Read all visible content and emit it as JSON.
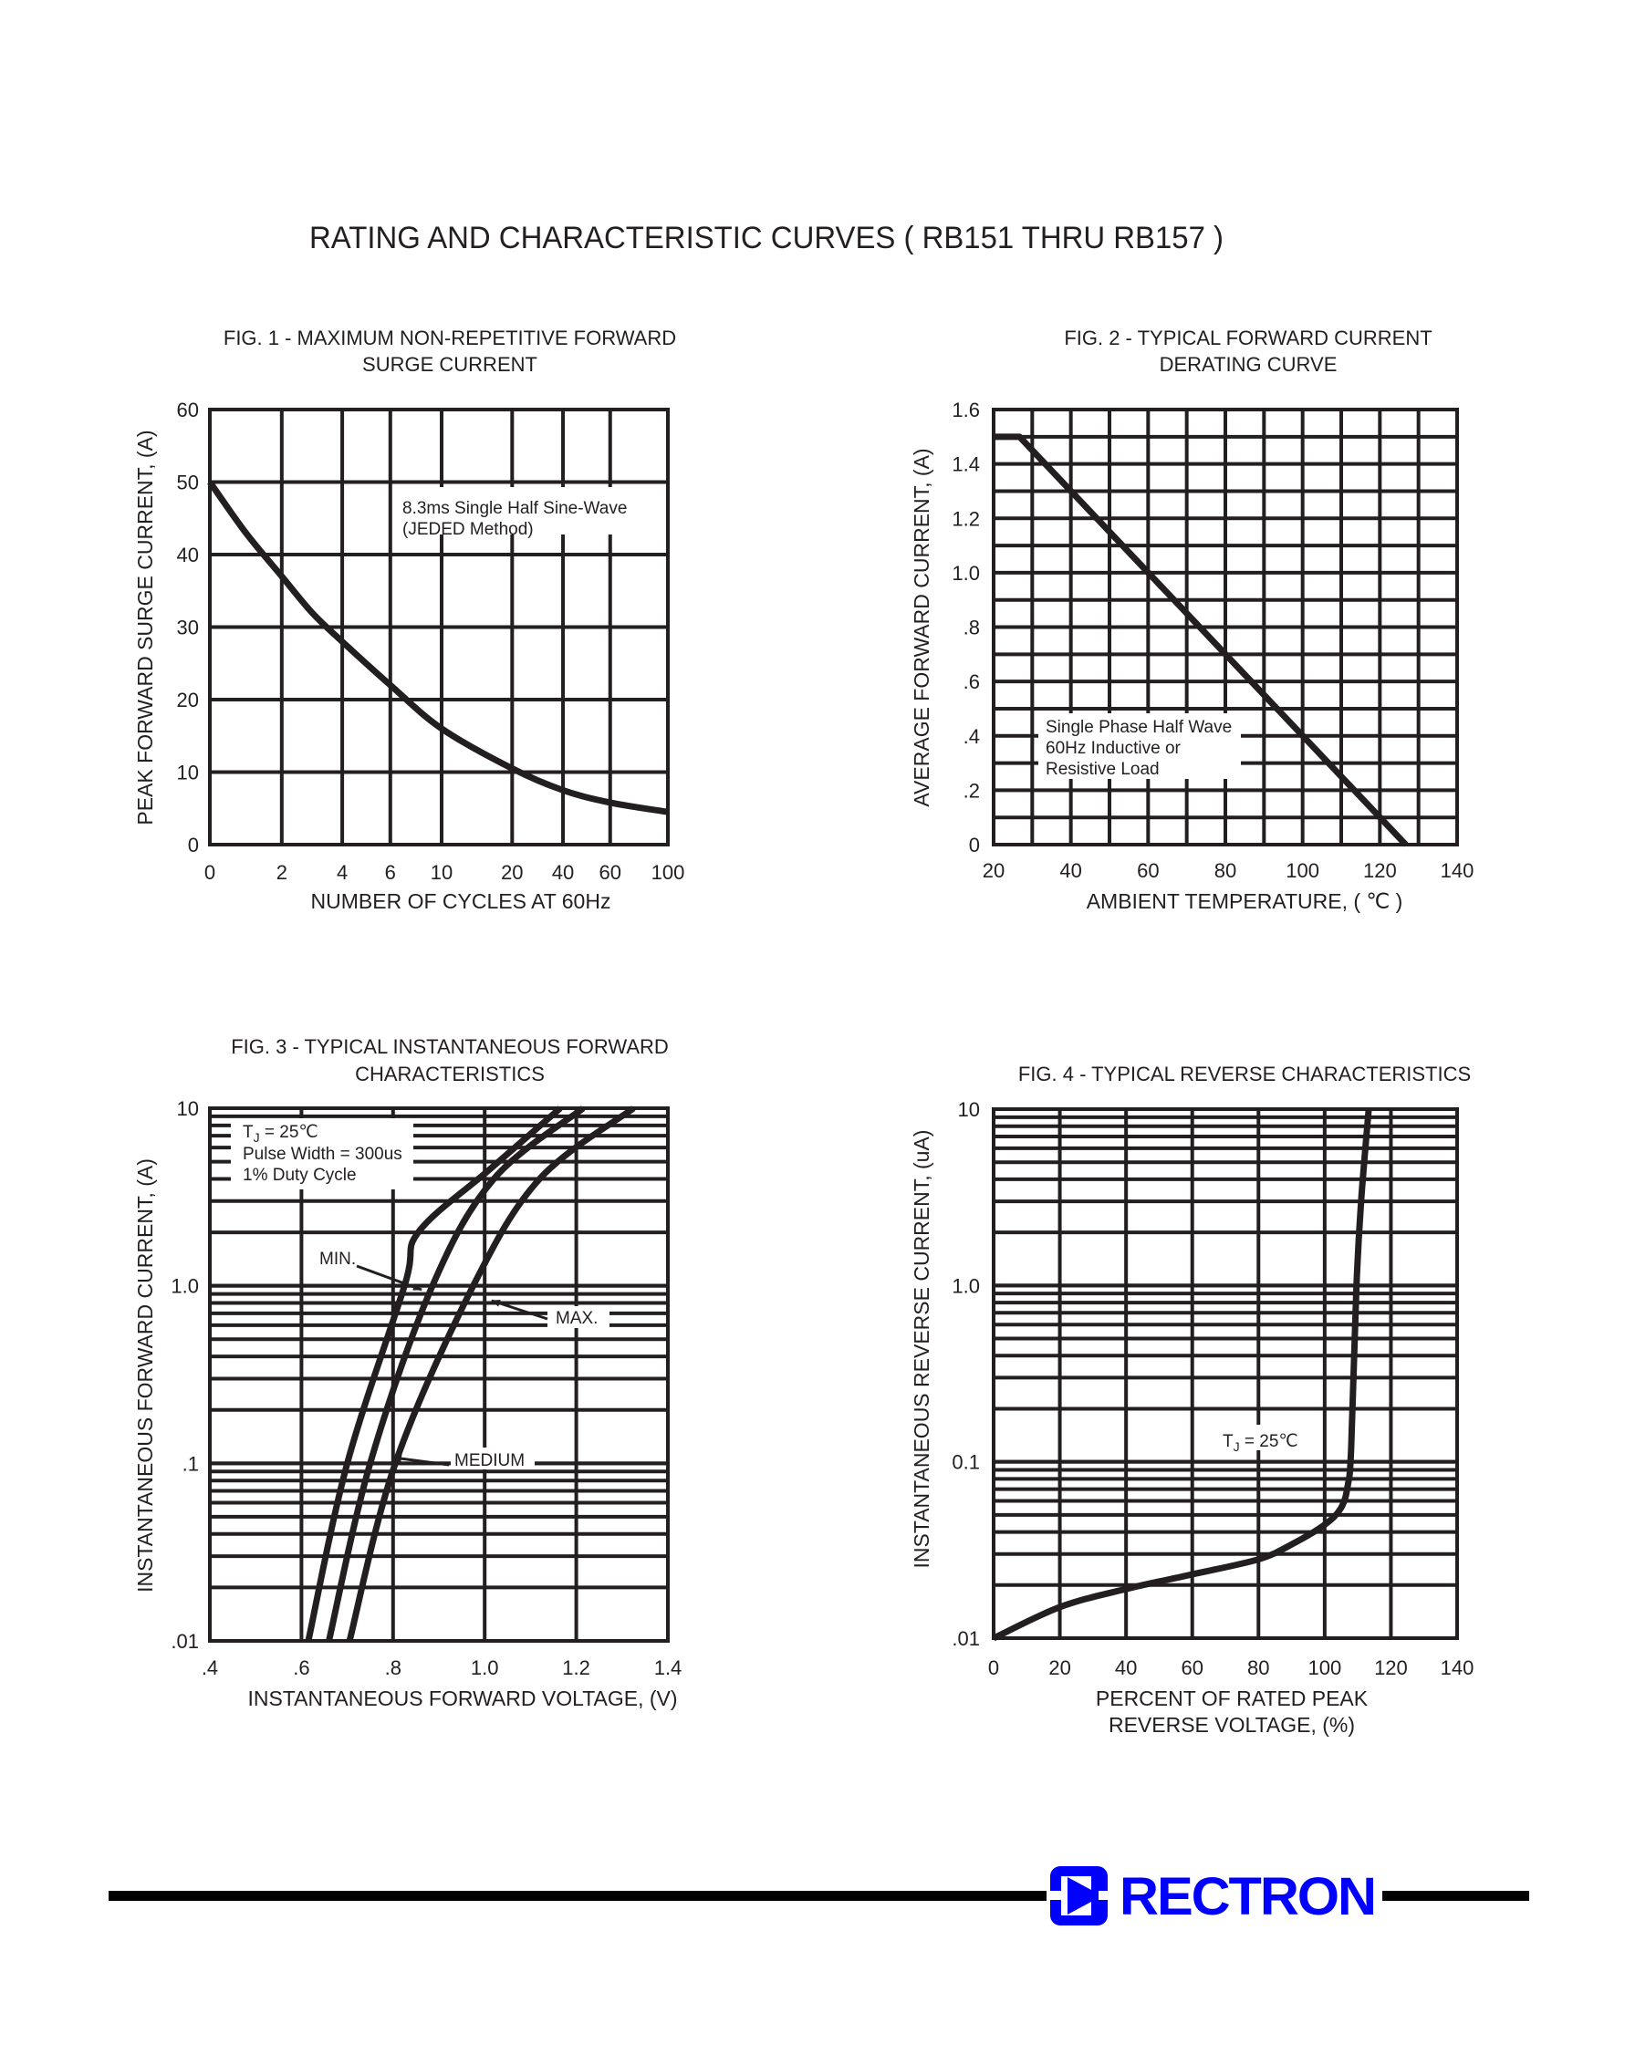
{
  "page": {
    "title": "RATING AND CHARACTERISTIC CURVES ( RB151 THRU RB157 )",
    "footer": {
      "brand": "RECTRON",
      "brand_color": "#0000ff",
      "logo_icon": "diode-logo-icon"
    }
  },
  "colors": {
    "ink": "#231f20",
    "background": "#ffffff"
  },
  "chart_data": [
    {
      "type": "line",
      "title_lines": [
        "FIG. 1 - MAXIMUM NON-REPETITIVE FORWARD",
        "SURGE CURRENT"
      ],
      "xlabel": "NUMBER OF CYCLES AT 60Hz",
      "ylabel": "PEAK FORWARD SURGE CURRENT, (A)",
      "x_ticks": [
        0,
        2,
        4,
        6,
        10,
        20,
        40,
        60,
        100
      ],
      "y_ticks": [
        0,
        10,
        20,
        30,
        40,
        50,
        60
      ],
      "xlim": [
        0,
        100
      ],
      "ylim": [
        0,
        60
      ],
      "grid": true,
      "annotation": [
        "8.3ms Single Half Sine-Wave",
        "(JEDED Method)"
      ],
      "series": [
        {
          "x": [
            0,
            1,
            2,
            3,
            4,
            6,
            10,
            20,
            40,
            60,
            100
          ],
          "y": [
            50,
            43,
            37,
            32,
            28,
            22,
            16,
            10.5,
            7.5,
            5.8,
            4.5
          ]
        }
      ]
    },
    {
      "type": "line",
      "title_lines": [
        "FIG. 2 - TYPICAL FORWARD CURRENT",
        "DERATING CURVE"
      ],
      "xlabel": "AMBIENT TEMPERATURE, ( ℃ )",
      "ylabel": "AVERAGE FORWARD CURRENT, (A)",
      "x_ticks": [
        20,
        40,
        60,
        80,
        100,
        120,
        140
      ],
      "y_ticks": [
        "0",
        ".2",
        ".4",
        ".6",
        ".8",
        "1.0",
        "1.2",
        "1.4",
        "1.6"
      ],
      "xlim": [
        20,
        140
      ],
      "ylim": [
        0,
        1.6
      ],
      "grid": true,
      "annotation": [
        "Single Phase Half Wave",
        "60Hz Inductive or",
        "Resistive Load"
      ],
      "series": [
        {
          "x": [
            20,
            26.7,
            126.7
          ],
          "y": [
            1.5,
            1.5,
            0
          ]
        }
      ]
    },
    {
      "type": "line",
      "title_lines": [
        "FIG. 3 - TYPICAL INSTANTANEOUS FORWARD",
        "CHARACTERISTICS"
      ],
      "xlabel": "INSTANTANEOUS FORWARD VOLTAGE, (V)",
      "ylabel": "INSTANTANEOUS FORWARD CURRENT, (A)",
      "x_ticks": [
        ".4",
        ".6",
        ".8",
        "1.0",
        "1.2",
        "1.4"
      ],
      "y_ticks": [
        ".01",
        ".1",
        "1.0",
        "10"
      ],
      "xlim": [
        0.4,
        1.4
      ],
      "ylim": [
        0.01,
        10
      ],
      "y_scale": "log",
      "grid": true,
      "conditions": {
        "tj": {
          "t": "T",
          "sub": "J",
          "rest": " = 25℃"
        },
        "lines": [
          "Pulse Width = 300us",
          "1% Duty Cycle"
        ]
      },
      "series": [
        {
          "name": "MIN.",
          "x": [
            0.615,
            0.7,
            0.825,
            0.855,
            1.01,
            1.165
          ],
          "y": [
            0.01,
            0.1,
            1.0,
            2.0,
            4.5,
            10
          ]
        },
        {
          "name": "MEDIUM",
          "x": [
            0.66,
            0.75,
            0.886,
            1.02,
            1.215
          ],
          "y": [
            0.01,
            0.1,
            1.0,
            4.0,
            10
          ]
        },
        {
          "name": "MAX.",
          "x": [
            0.705,
            0.805,
            0.975,
            1.12,
            1.325
          ],
          "y": [
            0.01,
            0.1,
            1.0,
            4.0,
            10
          ]
        }
      ]
    },
    {
      "type": "line",
      "title_lines": [
        "FIG. 4 - TYPICAL REVERSE CHARACTERISTICS"
      ],
      "xlabel_lines": [
        "PERCENT OF RATED PEAK",
        "REVERSE VOLTAGE, (%)"
      ],
      "ylabel": "INSTANTANEOUS REVERSE CURRENT, (uA)",
      "x_ticks": [
        0,
        20,
        40,
        60,
        80,
        100,
        120,
        140
      ],
      "y_ticks": [
        ".01",
        "0.1",
        "1.0",
        "10"
      ],
      "xlim": [
        0,
        140
      ],
      "ylim": [
        0.01,
        10
      ],
      "y_scale": "log",
      "grid": true,
      "conditions": {
        "tj": {
          "t": "T",
          "sub": "J",
          "rest": " = 25℃"
        }
      },
      "series": [
        {
          "x": [
            0,
            20,
            40,
            60,
            80,
            90,
            100,
            105,
            107,
            108,
            109.6,
            111,
            113.3
          ],
          "y": [
            0.01,
            0.015,
            0.019,
            0.023,
            0.028,
            0.034,
            0.044,
            0.055,
            0.074,
            0.12,
            1.0,
            3.0,
            10
          ]
        }
      ]
    }
  ]
}
